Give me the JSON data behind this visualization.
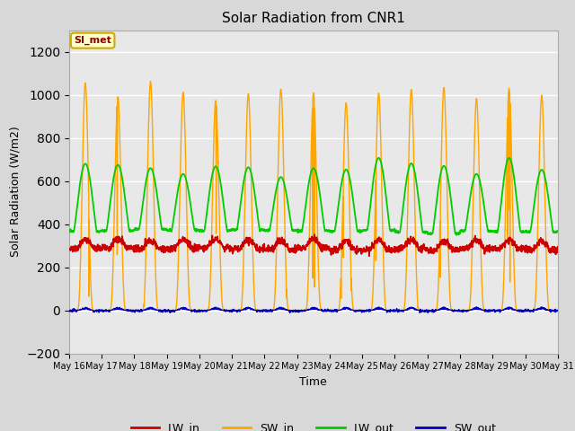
{
  "title": "Solar Radiation from CNR1",
  "xlabel": "Time",
  "ylabel": "Solar Radiation (W/m2)",
  "ylim": [
    -200,
    1300
  ],
  "yticks": [
    -200,
    0,
    200,
    400,
    600,
    800,
    1000,
    1200
  ],
  "n_days": 15,
  "start_day": 16,
  "end_day": 31,
  "points_per_day": 144,
  "LW_in_base": 285,
  "LW_in_noise": 8,
  "LW_in_day_bump": 40,
  "SW_in_peak": 1005,
  "LW_out_base": 370,
  "LW_out_peak": 660,
  "SW_out_peak": 15,
  "colors": {
    "LW_in": "#cc0000",
    "SW_in": "#ffa500",
    "LW_out": "#00cc00",
    "SW_out": "#0000bb"
  },
  "annotation_text": "SI_met",
  "background_color": "#d8d8d8",
  "plot_bg_color": "#e8e8e8",
  "grid_color": "#ffffff",
  "figsize": [
    6.4,
    4.8
  ],
  "dpi": 100
}
